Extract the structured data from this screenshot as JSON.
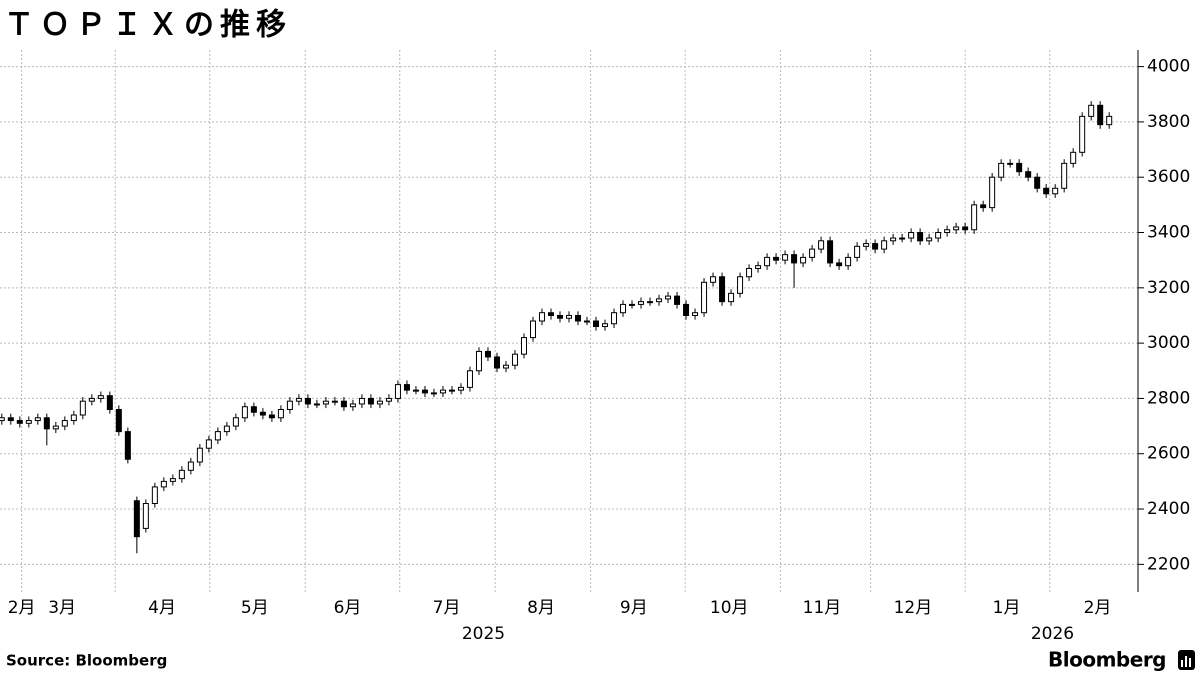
{
  "chart_data": {
    "type": "candlestick",
    "title": "ＴＯＰＩＸの推移",
    "source": "Source: Bloomberg",
    "logo": "Bloomberg",
    "categories": [
      null,
      null,
      null,
      null,
      null,
      null,
      null,
      null,
      null,
      null,
      null,
      null,
      null,
      null,
      null,
      null,
      null,
      null,
      null,
      null,
      null,
      null,
      null,
      null,
      null,
      null,
      null,
      null,
      null,
      null,
      null,
      null,
      null,
      null,
      null,
      null,
      null,
      null,
      null,
      null,
      null,
      null,
      null,
      null,
      null,
      null,
      null,
      null,
      null,
      null,
      null,
      null,
      null,
      null,
      null,
      null,
      null,
      null,
      null,
      null,
      null,
      null,
      null,
      null,
      null,
      null,
      null,
      null,
      null,
      null,
      null,
      null,
      null,
      null,
      null,
      null,
      null,
      null,
      null,
      null,
      null,
      null,
      null,
      null,
      null,
      null,
      null,
      null,
      null,
      null,
      null,
      null,
      null,
      null,
      null,
      null,
      null,
      null,
      null,
      null,
      null,
      null,
      null,
      null,
      null,
      null,
      null,
      null,
      null,
      null,
      null,
      null,
      null,
      null,
      null,
      null,
      null,
      null,
      null,
      null,
      null,
      null,
      null,
      null
    ],
    "open": [
      2720,
      2730,
      2720,
      2710,
      2720,
      2730,
      2690,
      2700,
      2720,
      2740,
      2790,
      2800,
      2810,
      2760,
      2680,
      2430,
      2330,
      2420,
      2480,
      2500,
      2510,
      2540,
      2570,
      2620,
      2650,
      2680,
      2700,
      2730,
      2770,
      2750,
      2740,
      2730,
      2760,
      2790,
      2800,
      2780,
      2780,
      2790,
      2790,
      2770,
      2780,
      2800,
      2780,
      2790,
      2800,
      2850,
      2830,
      2830,
      2820,
      2820,
      2830,
      2830,
      2840,
      2900,
      2970,
      2950,
      2910,
      2920,
      2960,
      3020,
      3080,
      3110,
      3100,
      3090,
      3100,
      3080,
      3080,
      3060,
      3070,
      3110,
      3140,
      3140,
      3150,
      3150,
      3160,
      3170,
      3140,
      3100,
      3110,
      3220,
      3240,
      3150,
      3180,
      3240,
      3270,
      3280,
      3310,
      3300,
      3320,
      3290,
      3310,
      3340,
      3370,
      3290,
      3280,
      3310,
      3350,
      3360,
      3340,
      3370,
      3380,
      3380,
      3400,
      3370,
      3380,
      3400,
      3410,
      3420,
      3410,
      3500,
      3490,
      3600,
      3650,
      3650,
      3620,
      3600,
      3560,
      3540,
      3560,
      3650,
      3690,
      3820,
      3860,
      3790
    ],
    "high": [
      2745,
      2745,
      2735,
      2735,
      2745,
      2745,
      2715,
      2735,
      2755,
      2805,
      2815,
      2825,
      2825,
      2775,
      2695,
      2445,
      2435,
      2495,
      2515,
      2525,
      2555,
      2585,
      2635,
      2665,
      2695,
      2715,
      2745,
      2785,
      2785,
      2765,
      2755,
      2775,
      2805,
      2815,
      2815,
      2795,
      2805,
      2805,
      2805,
      2795,
      2815,
      2815,
      2805,
      2815,
      2865,
      2865,
      2845,
      2845,
      2835,
      2845,
      2845,
      2855,
      2915,
      2985,
      2985,
      2965,
      2935,
      2975,
      3035,
      3095,
      3125,
      3125,
      3115,
      3115,
      3115,
      3095,
      3095,
      3085,
      3125,
      3155,
      3155,
      3165,
      3165,
      3175,
      3185,
      3185,
      3155,
      3125,
      3235,
      3255,
      3255,
      3195,
      3255,
      3285,
      3295,
      3325,
      3325,
      3335,
      3335,
      3325,
      3355,
      3385,
      3385,
      3305,
      3325,
      3365,
      3375,
      3375,
      3385,
      3395,
      3395,
      3415,
      3415,
      3395,
      3415,
      3425,
      3435,
      3435,
      3515,
      3515,
      3615,
      3665,
      3665,
      3665,
      3635,
      3615,
      3575,
      3575,
      3665,
      3705,
      3835,
      3875,
      3875,
      3835
    ],
    "low": [
      2705,
      2705,
      2695,
      2695,
      2705,
      2630,
      2675,
      2685,
      2705,
      2725,
      2775,
      2785,
      2745,
      2665,
      2565,
      2240,
      2315,
      2405,
      2465,
      2485,
      2495,
      2525,
      2555,
      2605,
      2635,
      2665,
      2685,
      2715,
      2735,
      2725,
      2715,
      2715,
      2745,
      2775,
      2765,
      2765,
      2765,
      2775,
      2755,
      2755,
      2765,
      2765,
      2765,
      2775,
      2785,
      2815,
      2815,
      2805,
      2805,
      2805,
      2815,
      2815,
      2825,
      2885,
      2935,
      2895,
      2895,
      2905,
      2945,
      3005,
      3065,
      3085,
      3075,
      3075,
      3065,
      3065,
      3045,
      3045,
      3055,
      3095,
      3125,
      3125,
      3135,
      3135,
      3145,
      3125,
      3085,
      3085,
      3095,
      3205,
      3135,
      3135,
      3165,
      3225,
      3255,
      3265,
      3285,
      3285,
      3200,
      3275,
      3295,
      3325,
      3275,
      3265,
      3265,
      3295,
      3335,
      3325,
      3325,
      3355,
      3365,
      3365,
      3355,
      3355,
      3365,
      3385,
      3395,
      3395,
      3395,
      3475,
      3475,
      3585,
      3635,
      3605,
      3585,
      3545,
      3525,
      3525,
      3545,
      3635,
      3675,
      3805,
      3775,
      3775
    ],
    "close": [
      2730,
      2720,
      2710,
      2720,
      2730,
      2690,
      2700,
      2720,
      2740,
      2790,
      2800,
      2810,
      2760,
      2680,
      2580,
      2300,
      2420,
      2480,
      2500,
      2510,
      2540,
      2570,
      2620,
      2650,
      2680,
      2700,
      2730,
      2770,
      2750,
      2740,
      2730,
      2760,
      2790,
      2800,
      2780,
      2780,
      2790,
      2790,
      2770,
      2780,
      2800,
      2780,
      2790,
      2800,
      2850,
      2830,
      2830,
      2820,
      2820,
      2830,
      2830,
      2840,
      2900,
      2970,
      2950,
      2910,
      2920,
      2960,
      3020,
      3080,
      3110,
      3100,
      3090,
      3100,
      3080,
      3080,
      3060,
      3070,
      3110,
      3140,
      3140,
      3150,
      3150,
      3160,
      3170,
      3140,
      3100,
      3110,
      3220,
      3240,
      3150,
      3180,
      3240,
      3270,
      3280,
      3310,
      3300,
      3320,
      3290,
      3310,
      3340,
      3370,
      3290,
      3280,
      3310,
      3350,
      3360,
      3340,
      3370,
      3380,
      3380,
      3400,
      3370,
      3380,
      3400,
      3410,
      3420,
      3410,
      3500,
      3490,
      3600,
      3650,
      3650,
      3620,
      3600,
      3560,
      3540,
      3560,
      3650,
      3690,
      3820,
      3860,
      3790,
      3820
    ],
    "up_color": "#ffffff",
    "down_color": "#000000",
    "edge_color": "#000000",
    "xlim": [
      -0.2,
      126.2
    ],
    "xticks": [
      {
        "value": 2.2,
        "label": "2月"
      },
      {
        "value": 6.7,
        "label": "3月"
      },
      {
        "value": 17.8,
        "label": "4月"
      },
      {
        "value": 28.1,
        "label": "5月"
      },
      {
        "value": 38.4,
        "label": "6月"
      },
      {
        "value": 49.4,
        "label": "7月"
      },
      {
        "value": 59.9,
        "label": "8月"
      },
      {
        "value": 70.2,
        "label": "9月"
      },
      {
        "value": 80.8,
        "label": "10月"
      },
      {
        "value": 91.1,
        "label": "11月"
      },
      {
        "value": 101.2,
        "label": "12月"
      },
      {
        "value": 111.6,
        "label": "1月"
      },
      {
        "value": 121.7,
        "label": "2月"
      }
    ],
    "year_labels": [
      {
        "value": 53.5,
        "label": "2025"
      },
      {
        "value": 116.7,
        "label": "2026"
      }
    ],
    "xgrid": [
      2.2,
      12.6,
      23.1,
      33.7,
      44.2,
      54.8,
      65.4,
      75.9,
      86.5,
      96.5,
      107,
      116.4
    ],
    "ylim": [
      2100,
      4060
    ],
    "yticks": [
      2200,
      2400,
      2600,
      2800,
      3000,
      3200,
      3400,
      3600,
      3800,
      4000
    ],
    "grid": true,
    "y_axis_side": "right"
  }
}
